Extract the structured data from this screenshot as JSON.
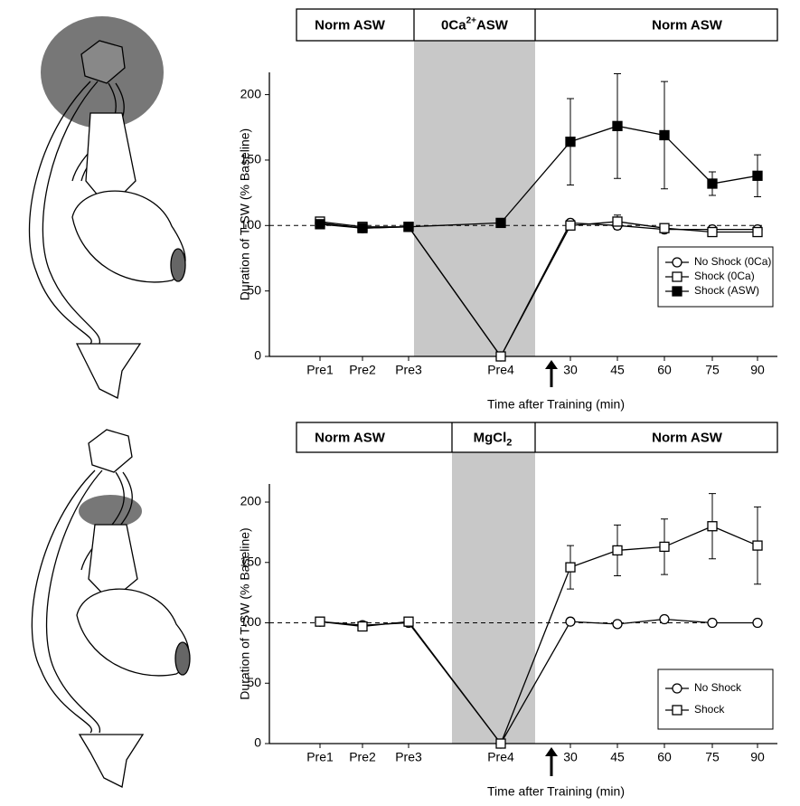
{
  "chart_data": [
    {
      "type": "line",
      "header": [
        {
          "text": "Norm ASW"
        },
        {
          "text": "0Ca",
          "sup": "2+",
          "after": "ASW"
        },
        {
          "text": "Norm ASW"
        }
      ],
      "categories": [
        "Pre1",
        "Pre2",
        "Pre3",
        "Pre4",
        "30",
        "45",
        "60",
        "75",
        "90"
      ],
      "x_label": "Time after Training (min)",
      "y_label": "Duration of T-SW (% Baseline)",
      "ylim": [
        0,
        217
      ],
      "yticks": [
        0,
        50,
        100,
        150,
        200
      ],
      "reference_line": 100,
      "series": [
        {
          "name": "No Shock (0Ca)",
          "marker": "circle",
          "filled": false,
          "color": "#000000",
          "values": [
            102,
            98,
            99,
            0,
            102,
            100,
            97,
            97,
            97
          ],
          "errors": [
            null,
            null,
            null,
            null,
            null,
            3,
            null,
            null,
            null
          ]
        },
        {
          "name": "Shock (0Ca)",
          "marker": "square",
          "filled": false,
          "color": "#000000",
          "values": [
            103,
            99,
            99,
            0,
            100,
            103,
            98,
            95,
            95
          ],
          "errors": [
            null,
            null,
            null,
            null,
            null,
            5,
            null,
            null,
            null
          ]
        },
        {
          "name": "Shock (ASW)",
          "marker": "square",
          "filled": true,
          "color": "#000000",
          "values": [
            101,
            98,
            99,
            102,
            164,
            176,
            169,
            132,
            138
          ],
          "errors": [
            null,
            null,
            null,
            null,
            33,
            40,
            41,
            9,
            16
          ]
        }
      ]
    },
    {
      "type": "line",
      "header": [
        {
          "text": "Norm ASW"
        },
        {
          "text": "MgCl",
          "sub": "2"
        },
        {
          "text": "Norm ASW"
        }
      ],
      "categories": [
        "Pre1",
        "Pre2",
        "Pre3",
        "Pre4",
        "30",
        "45",
        "60",
        "75",
        "90"
      ],
      "x_label": "Time after Training (min)",
      "y_label": "Duration of T-SW (% Baseline)",
      "ylim": [
        0,
        215
      ],
      "yticks": [
        0,
        50,
        100,
        150,
        200
      ],
      "reference_line": 100,
      "series": [
        {
          "name": "No Shock",
          "marker": "circle",
          "filled": false,
          "color": "#000000",
          "values": [
            101,
            98,
            100,
            0,
            101,
            99,
            103,
            100,
            100
          ],
          "errors": [
            null,
            null,
            null,
            null,
            null,
            null,
            null,
            null,
            null
          ]
        },
        {
          "name": "Shock",
          "marker": "square",
          "filled": false,
          "color": "#000000",
          "values": [
            101,
            97,
            101,
            0,
            146,
            160,
            163,
            180,
            164
          ],
          "errors": [
            null,
            null,
            null,
            null,
            18,
            21,
            23,
            27,
            32
          ]
        }
      ]
    }
  ]
}
